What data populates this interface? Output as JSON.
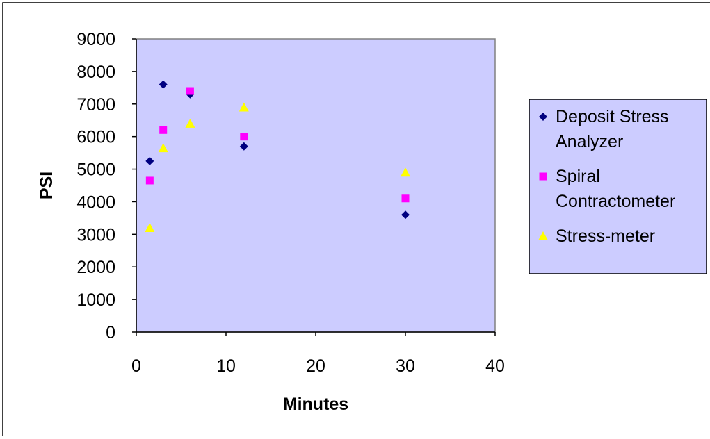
{
  "chart_data": {
    "type": "scatter",
    "title": "",
    "xlabel": "Minutes",
    "ylabel": "PSI",
    "xlim": [
      0,
      40
    ],
    "ylim": [
      0,
      9000
    ],
    "x_ticks": [
      0,
      10,
      20,
      30,
      40
    ],
    "y_ticks": [
      0,
      1000,
      2000,
      3000,
      4000,
      5000,
      6000,
      7000,
      8000,
      9000
    ],
    "grid": false,
    "legend_position": "right",
    "plot_background": "#CCCCFF",
    "series": [
      {
        "name": "Deposit Stress Analyzer",
        "legend_lines": [
          "Deposit Stress",
          "Analyzer"
        ],
        "marker": "diamond",
        "color": "#000080",
        "x": [
          1.5,
          3,
          6,
          12,
          30
        ],
        "y": [
          5250,
          7600,
          7300,
          5700,
          3600
        ]
      },
      {
        "name": "Spiral Contractometer",
        "legend_lines": [
          "Spiral",
          "Contractometer"
        ],
        "marker": "square",
        "color": "#FF00FF",
        "x": [
          1.5,
          3,
          6,
          12,
          30
        ],
        "y": [
          4650,
          6200,
          7400,
          6000,
          4100
        ]
      },
      {
        "name": "Stress-meter",
        "legend_lines": [
          "Stress-meter"
        ],
        "marker": "triangle",
        "color": "#FFFF00",
        "x": [
          1.5,
          3,
          6,
          12,
          30
        ],
        "y": [
          3200,
          5650,
          6400,
          6900,
          4900
        ]
      }
    ]
  }
}
